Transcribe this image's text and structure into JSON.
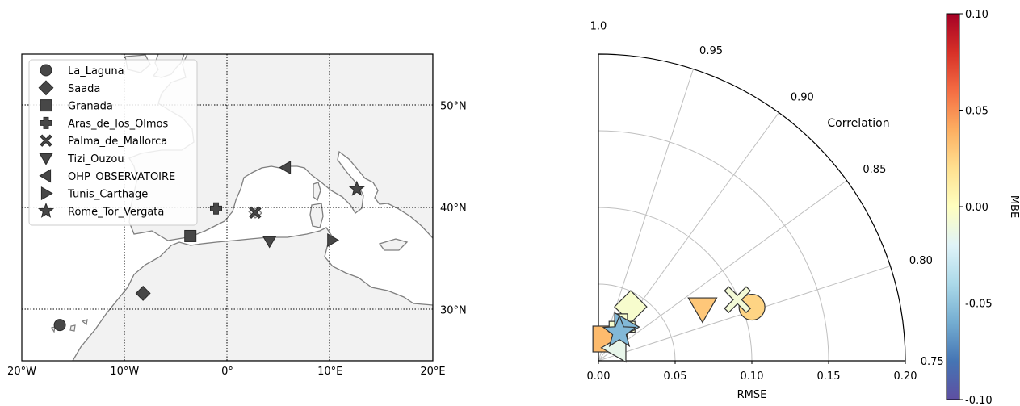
{
  "chart_data": [
    {
      "type": "scatter",
      "subtype": "map",
      "xlim": [
        -20,
        20
      ],
      "ylim": [
        25,
        55
      ],
      "x_tick_labels": [
        {
          "value": -20,
          "label": "20°W"
        },
        {
          "value": -10,
          "label": "10°W"
        },
        {
          "value": 0,
          "label": "0°"
        },
        {
          "value": 10,
          "label": "10°E"
        },
        {
          "value": 20,
          "label": "20°E"
        }
      ],
      "y_tick_labels": [
        {
          "value": 50,
          "label": "50°N"
        },
        {
          "value": 40,
          "label": "40°N"
        },
        {
          "value": 30,
          "label": "30°N"
        }
      ],
      "grid": true,
      "legend_position": "top-left",
      "series": [
        {
          "name": "La_Laguna",
          "marker": "circle",
          "lon": -16.3,
          "lat": 28.5
        },
        {
          "name": "Saada",
          "marker": "diamond",
          "lon": -8.2,
          "lat": 31.6
        },
        {
          "name": "Granada",
          "marker": "square",
          "lon": -3.6,
          "lat": 37.2
        },
        {
          "name": "Aras_de_los_Olmos",
          "marker": "plus",
          "lon": -1.1,
          "lat": 39.9
        },
        {
          "name": "Palma_de_Mallorca",
          "marker": "x",
          "lon": 2.7,
          "lat": 39.5
        },
        {
          "name": "Tizi_Ouzou",
          "marker": "triangle-down",
          "lon": 4.1,
          "lat": 36.7
        },
        {
          "name": "OHP_OBSERVATOIRE",
          "marker": "triangle-left",
          "lon": 5.7,
          "lat": 43.9
        },
        {
          "name": "Tunis_Carthage",
          "marker": "triangle-right",
          "lon": 10.2,
          "lat": 36.8
        },
        {
          "name": "Rome_Tor_Vergata",
          "marker": "star",
          "lon": 12.6,
          "lat": 41.8
        }
      ]
    },
    {
      "type": "scatter",
      "subtype": "taylor-diagram",
      "xlabel": "RMSE",
      "x_tick_labels": [
        "0.00",
        "0.05",
        "0.10",
        "0.15",
        "0.20"
      ],
      "xlim": [
        0,
        0.2
      ],
      "correlation_label": "Correlation",
      "correlation_range": [
        0.75,
        1.0
      ],
      "correlation_tick_labels": [
        "1.0",
        "0.95",
        "0.90",
        "0.85",
        "0.80",
        "0.75"
      ],
      "grid": true,
      "points": [
        {
          "name": "La_Laguna",
          "marker": "circle",
          "rmse": 0.106,
          "corr": 0.8035,
          "mbe": 0.025
        },
        {
          "name": "Saada",
          "marker": "diamond",
          "rmse": 0.041,
          "corr": 0.9145,
          "mbe": -0.005
        },
        {
          "name": "Granada",
          "marker": "square",
          "rmse": 0.015,
          "corr": 0.948,
          "mbe": 0.035
        },
        {
          "name": "Aras_de_los_Olmos",
          "marker": "plus",
          "rmse": 0.027,
          "corr": 0.9035,
          "mbe": -0.005
        },
        {
          "name": "Palma_de_Mallorca",
          "marker": "x",
          "rmse": 0.099,
          "corr": 0.816,
          "mbe": -0.008
        },
        {
          "name": "Tizi_Ouzou",
          "marker": "triangle-down",
          "rmse": 0.076,
          "corr": 0.8245,
          "mbe": 0.03
        },
        {
          "name": "OHP_OBSERVATOIRE",
          "marker": "triangle-left",
          "rmse": 0.014,
          "corr": 0.8535,
          "mbe": -0.015
        },
        {
          "name": "Tunis_Carthage",
          "marker": "triangle-right",
          "rmse": 0.028,
          "corr": 0.894,
          "mbe": -0.055
        },
        {
          "name": "Rome_Tor_Vergata",
          "marker": "star",
          "rmse": 0.023,
          "corr": 0.8985,
          "mbe": -0.055
        }
      ],
      "colorbar": {
        "label": "MBE",
        "min": -0.1,
        "max": 0.1,
        "tick_labels": [
          "0.10",
          "0.05",
          "0.00",
          "-0.05",
          "-0.10"
        ],
        "colormap": "RdYlBu_r",
        "colors": [
          "#5e4fa2",
          "#4575b4",
          "#74add1",
          "#abd9e9",
          "#e0f3f8",
          "#ffffbf",
          "#fee090",
          "#fdae61",
          "#f46d43",
          "#d73027",
          "#a50026"
        ]
      }
    }
  ],
  "colors": {
    "marker_dark": "#474747",
    "land": "#f2f2f2",
    "coast": "#7f7f7f",
    "grid": "#bfbfbf"
  }
}
